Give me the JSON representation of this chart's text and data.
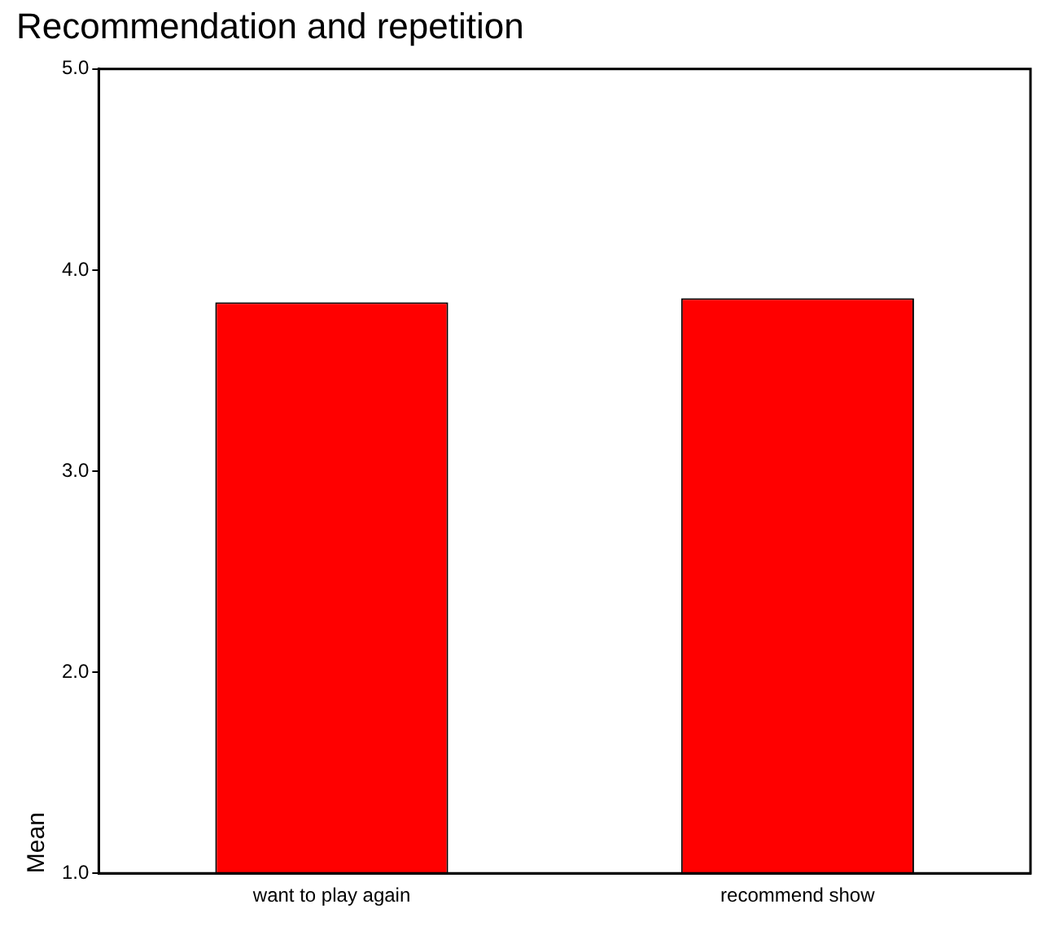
{
  "chart_data": {
    "type": "bar",
    "title": "Recommendation and repetition",
    "ylabel": "Mean",
    "categories": [
      "want to play again",
      "recommend show"
    ],
    "values": [
      3.84,
      3.86
    ],
    "color": "#ff0000",
    "ylim": [
      1,
      5
    ],
    "yticks": [
      {
        "value": 1,
        "label": "1.0"
      },
      {
        "value": 2,
        "label": "2.0"
      },
      {
        "value": 3,
        "label": "3.0"
      },
      {
        "value": 4,
        "label": "4.0"
      },
      {
        "value": 5,
        "label": "5.0"
      }
    ],
    "grid": false,
    "legend": false
  }
}
